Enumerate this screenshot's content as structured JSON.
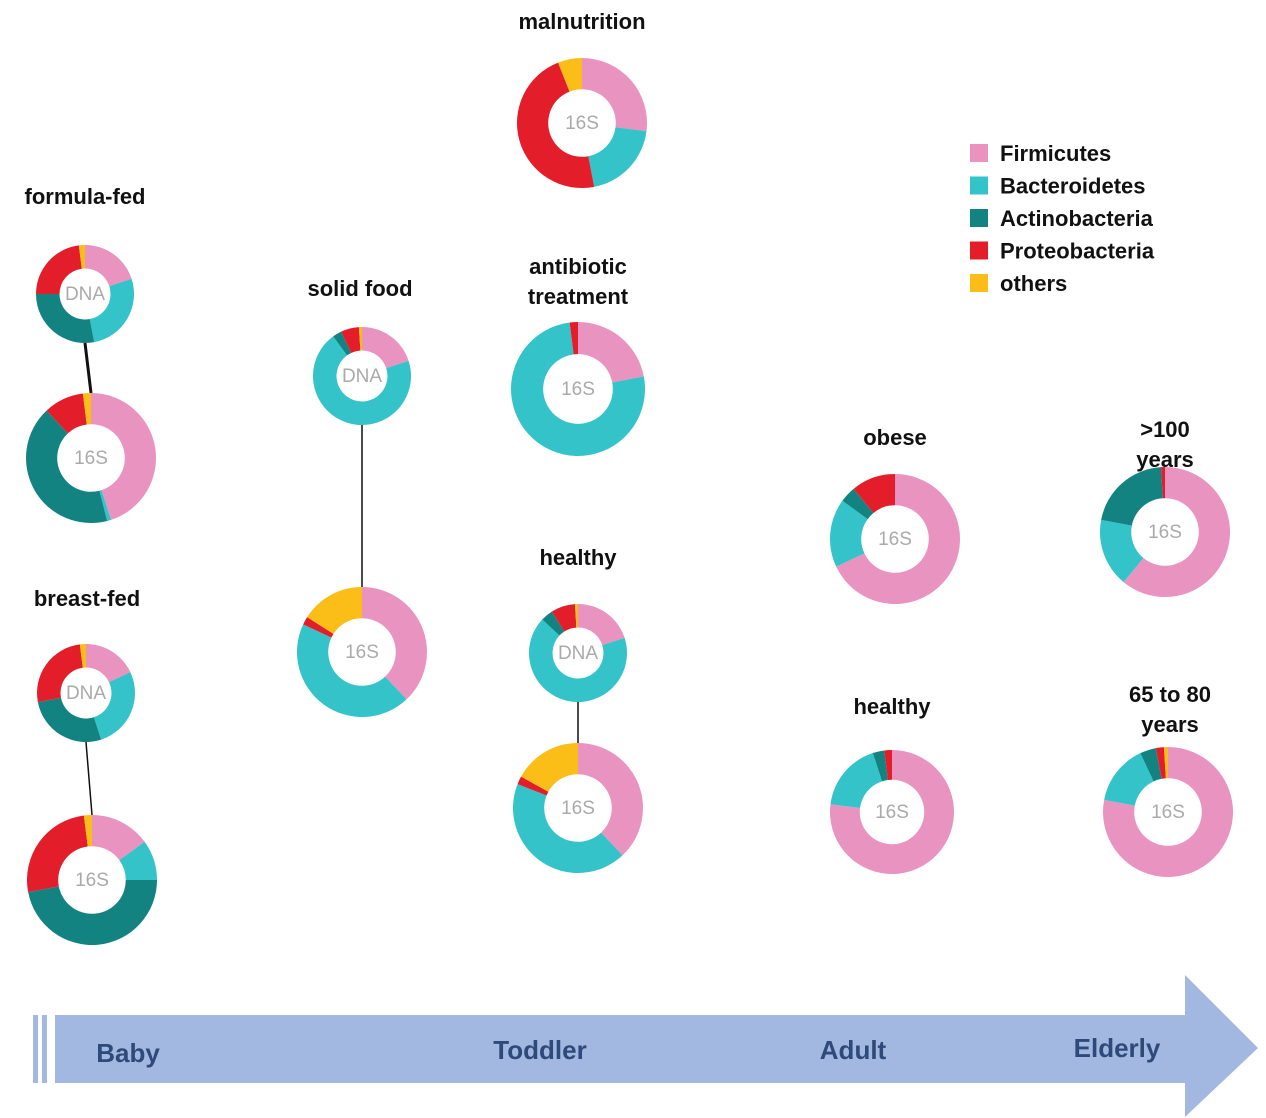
{
  "chart_data": [
    {
      "type": "donut",
      "title": "formula-fed",
      "center_label": "DNA",
      "values": [
        20,
        27,
        28,
        23,
        2
      ]
    },
    {
      "type": "donut",
      "center_label": "16S",
      "values": [
        45,
        1,
        42,
        10,
        2
      ]
    },
    {
      "type": "donut",
      "title": "breast-fed",
      "center_label": "DNA",
      "values": [
        18,
        27,
        27,
        26,
        2
      ]
    },
    {
      "type": "donut",
      "center_label": "16S",
      "values": [
        15,
        10,
        47,
        26,
        2
      ]
    },
    {
      "type": "donut",
      "title": "solid food",
      "center_label": "DNA",
      "values": [
        20,
        70,
        3,
        6,
        1
      ]
    },
    {
      "type": "donut",
      "center_label": "16S",
      "values": [
        38,
        44,
        0,
        2,
        16
      ]
    },
    {
      "type": "donut",
      "title": "malnutrition",
      "center_label": "16S",
      "values": [
        27,
        20,
        0,
        47,
        6
      ]
    },
    {
      "type": "donut",
      "title": "antibiotic treatment",
      "center_label": "16S",
      "values": [
        22,
        76,
        0,
        2,
        0
      ]
    },
    {
      "type": "donut",
      "title": "healthy",
      "center_label": "DNA",
      "values": [
        20,
        67,
        4,
        8,
        1
      ]
    },
    {
      "type": "donut",
      "center_label": "16S",
      "values": [
        38,
        43,
        0,
        2,
        17
      ]
    },
    {
      "type": "donut",
      "title": "obese",
      "center_label": "16S",
      "values": [
        68,
        17,
        4,
        11,
        0
      ]
    },
    {
      "type": "donut",
      "title": "healthy",
      "center_label": "16S",
      "values": [
        77,
        18,
        3,
        2,
        0
      ]
    },
    {
      "type": "donut",
      "title": ">100 years",
      "center_label": "16S",
      "values": [
        61,
        17,
        21,
        1,
        0
      ]
    },
    {
      "type": "donut",
      "title": "65 to 80 years",
      "center_label": "16S",
      "values": [
        78,
        15,
        4,
        2,
        1
      ]
    }
  ],
  "legend": {
    "categories": [
      "Firmicutes",
      "Bacteroidetes",
      "Actinobacteria",
      "Proteobacteria",
      "others"
    ],
    "colors": [
      "#e993c1",
      "#33c3c9",
      "#138381",
      "#e31e2a",
      "#fbbd18"
    ]
  },
  "timeline": [
    "Baby",
    "Toddler",
    "Adult",
    "Elderly"
  ]
}
